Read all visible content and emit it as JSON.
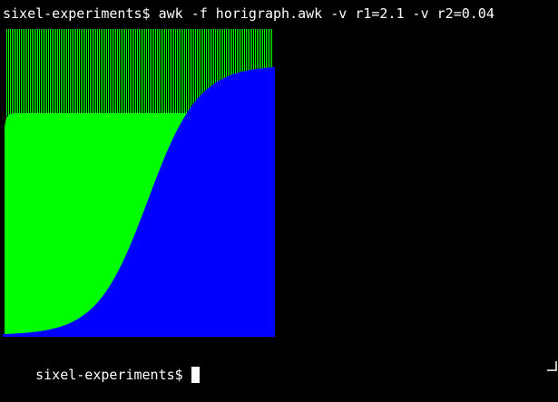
{
  "terminal": {
    "command_line": "sixel-experiments$ awk -f horigraph.awk -v r1=2.1 -v r2=0.04",
    "prompt_line": "sixel-experiments$",
    "colors": {
      "background": "#000000",
      "text": "#ffffff",
      "series_green": "#00ff00",
      "series_blue": "#0000ff"
    }
  },
  "graph": {
    "description_icon": "sixel-graph-image",
    "chart_data": {
      "type": "area",
      "series": [
        {
          "color": "#00ff00",
          "note": "logistic growth with r1, saturating near level",
          "level": 0.72
        },
        {
          "color": "#0000ff",
          "note": "logistic growth with r2",
          "level": 0.88
        }
      ],
      "grid": false
    }
  },
  "window": {
    "resize_grip_icon": "resize-grip-icon"
  }
}
